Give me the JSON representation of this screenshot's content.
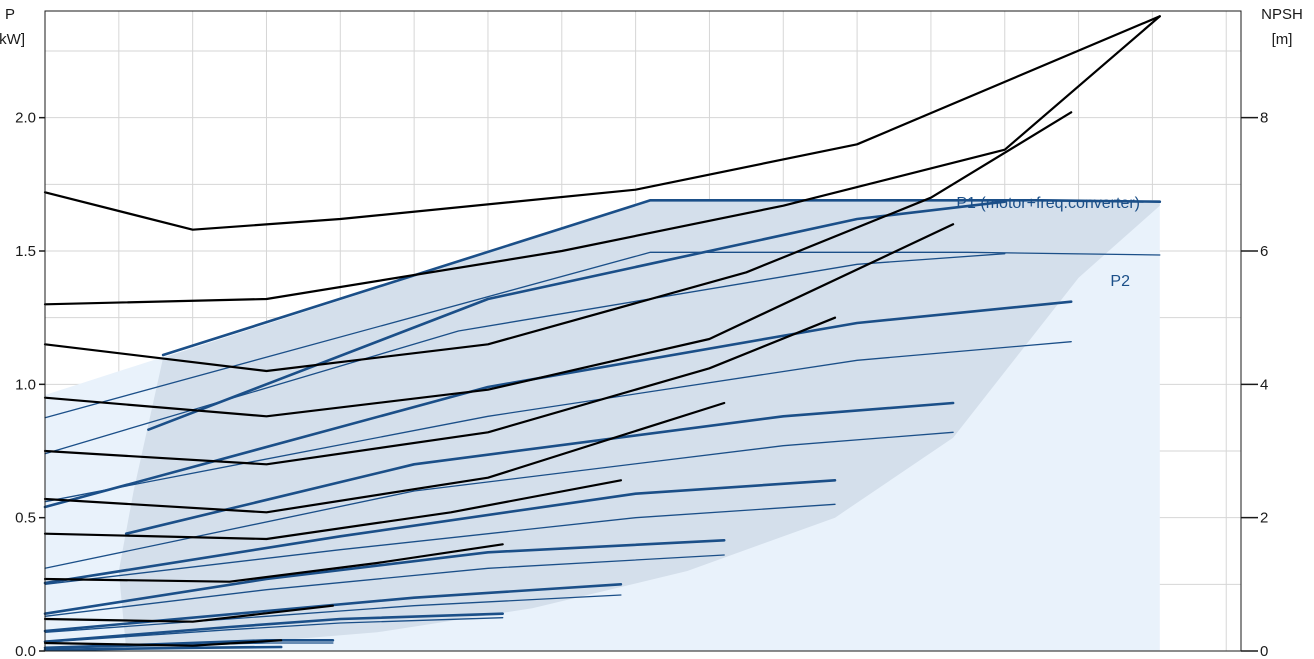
{
  "chart_data": {
    "type": "line",
    "left_axis": {
      "label_line1": "P",
      "label_line2": "[kW]",
      "ylim": [
        0,
        2.4
      ],
      "ticks": [
        "0.0",
        "0.5",
        "1.0",
        "1.5",
        "2.0"
      ]
    },
    "right_axis": {
      "label_line1": "NPSH",
      "label_line2": "[m]",
      "ylim": [
        0,
        9.6
      ],
      "ticks": [
        "0",
        "2",
        "4",
        "6",
        "8"
      ]
    },
    "xlim": [
      0,
      16.2
    ],
    "grid": true,
    "colors": {
      "power_line": "#1b4f88",
      "region_fill": "#d4dfeb",
      "region_fill_light": "#e9f2fb",
      "npsh_line": "#000000",
      "label": "#1b4f88"
    },
    "annotations": {
      "p1": "P1 (motor+freq.converter)",
      "p2": "P2"
    },
    "envelope": [
      [
        0,
        0
      ],
      [
        15.1,
        0
      ],
      [
        15.1,
        1.69
      ],
      [
        8.2,
        1.69
      ],
      [
        0,
        0.96
      ]
    ],
    "region": [
      [
        1.6,
        1.1
      ],
      [
        8.2,
        1.69
      ],
      [
        15.1,
        1.69
      ],
      [
        15.1,
        1.67
      ],
      [
        14.0,
        1.4
      ],
      [
        12.3,
        0.8
      ],
      [
        10.7,
        0.5
      ],
      [
        8.7,
        0.3
      ],
      [
        6.6,
        0.16
      ],
      [
        4.5,
        0.07
      ],
      [
        2.5,
        0.025
      ],
      [
        1.1,
        0.005
      ],
      [
        1.0,
        0.3
      ],
      [
        1.2,
        0.6
      ],
      [
        1.4,
        0.85
      ]
    ],
    "series": [
      {
        "kind": "P1",
        "points": [
          [
            1.6,
            1.11
          ],
          [
            8.2,
            1.69
          ],
          [
            9.0,
            1.69
          ],
          [
            11.0,
            1.69
          ],
          [
            13.5,
            1.69
          ],
          [
            15.1,
            1.685
          ]
        ]
      },
      {
        "kind": "P2",
        "points": [
          [
            0,
            0.875
          ],
          [
            8.2,
            1.495
          ],
          [
            10.0,
            1.495
          ],
          [
            12.5,
            1.495
          ],
          [
            15.1,
            1.485
          ]
        ]
      },
      {
        "kind": "P1",
        "points": [
          [
            1.4,
            0.83
          ],
          [
            6.0,
            1.32
          ],
          [
            11.0,
            1.62
          ],
          [
            13.0,
            1.685
          ]
        ]
      },
      {
        "kind": "P2",
        "points": [
          [
            0,
            0.74
          ],
          [
            5.6,
            1.2
          ],
          [
            11.0,
            1.45
          ],
          [
            13.0,
            1.49
          ]
        ]
      },
      {
        "kind": "P1",
        "points": [
          [
            0,
            0.54
          ],
          [
            6.0,
            0.99
          ],
          [
            11.0,
            1.23
          ],
          [
            13.9,
            1.31
          ]
        ]
      },
      {
        "kind": "P2",
        "points": [
          [
            0,
            0.56
          ],
          [
            6.0,
            0.88
          ],
          [
            11.0,
            1.09
          ],
          [
            13.9,
            1.16
          ]
        ]
      },
      {
        "kind": "P1",
        "points": [
          [
            1.1,
            0.44
          ],
          [
            5.0,
            0.7
          ],
          [
            10.0,
            0.88
          ],
          [
            12.3,
            0.93
          ]
        ]
      },
      {
        "kind": "P2",
        "points": [
          [
            0,
            0.31
          ],
          [
            5.0,
            0.6
          ],
          [
            10.0,
            0.77
          ],
          [
            12.3,
            0.82
          ]
        ]
      },
      {
        "kind": "P1",
        "points": [
          [
            0,
            0.255
          ],
          [
            4.0,
            0.43
          ],
          [
            8.0,
            0.59
          ],
          [
            10.7,
            0.64
          ]
        ]
      },
      {
        "kind": "P2",
        "points": [
          [
            0,
            0.25
          ],
          [
            4.0,
            0.38
          ],
          [
            8.0,
            0.5
          ],
          [
            10.7,
            0.55
          ]
        ]
      },
      {
        "kind": "P1",
        "points": [
          [
            0,
            0.14
          ],
          [
            3.0,
            0.27
          ],
          [
            6.0,
            0.37
          ],
          [
            9.2,
            0.415
          ]
        ]
      },
      {
        "kind": "P2",
        "points": [
          [
            0,
            0.13
          ],
          [
            3.0,
            0.23
          ],
          [
            6.0,
            0.31
          ],
          [
            9.2,
            0.36
          ]
        ]
      },
      {
        "kind": "P1",
        "points": [
          [
            0,
            0.075
          ],
          [
            3.0,
            0.15
          ],
          [
            5.0,
            0.2
          ],
          [
            7.8,
            0.25
          ]
        ]
      },
      {
        "kind": "P2",
        "points": [
          [
            0,
            0.07
          ],
          [
            3.0,
            0.13
          ],
          [
            5.0,
            0.17
          ],
          [
            7.8,
            0.21
          ]
        ]
      },
      {
        "kind": "P1",
        "points": [
          [
            0,
            0.035
          ],
          [
            2.5,
            0.09
          ],
          [
            4.0,
            0.12
          ],
          [
            6.2,
            0.14
          ]
        ]
      },
      {
        "kind": "P2",
        "points": [
          [
            0,
            0.033
          ],
          [
            2.5,
            0.08
          ],
          [
            4.0,
            0.105
          ],
          [
            6.2,
            0.125
          ]
        ]
      },
      {
        "kind": "P1",
        "points": [
          [
            0,
            0.012
          ],
          [
            1.5,
            0.025
          ],
          [
            3.0,
            0.04
          ],
          [
            3.9,
            0.04
          ]
        ]
      },
      {
        "kind": "P2",
        "points": [
          [
            0,
            0.01
          ],
          [
            1.5,
            0.02
          ],
          [
            3.0,
            0.03
          ],
          [
            3.9,
            0.03
          ]
        ]
      },
      {
        "kind": "P1",
        "points": [
          [
            0,
            0.004
          ],
          [
            2.0,
            0.012
          ],
          [
            3.2,
            0.015
          ]
        ]
      },
      {
        "kind": "NPSH",
        "points": [
          [
            0,
            1.72
          ],
          [
            2.0,
            1.58
          ],
          [
            4.0,
            1.62
          ],
          [
            8.0,
            1.73
          ],
          [
            11.0,
            1.9
          ],
          [
            15.1,
            2.38
          ]
        ]
      },
      {
        "kind": "NPSH",
        "points": [
          [
            0,
            1.3
          ],
          [
            3.0,
            1.32
          ],
          [
            7.0,
            1.5
          ],
          [
            10.0,
            1.67
          ],
          [
            13.0,
            1.88
          ],
          [
            15.1,
            2.38
          ]
        ]
      },
      {
        "kind": "NPSH",
        "points": [
          [
            0,
            1.15
          ],
          [
            3.0,
            1.05
          ],
          [
            6.0,
            1.15
          ],
          [
            9.5,
            1.42
          ],
          [
            12.0,
            1.7
          ],
          [
            13.9,
            2.02
          ]
        ]
      },
      {
        "kind": "NPSH",
        "points": [
          [
            0,
            0.95
          ],
          [
            3.0,
            0.88
          ],
          [
            6.0,
            0.98
          ],
          [
            9.0,
            1.17
          ],
          [
            12.3,
            1.6
          ]
        ]
      },
      {
        "kind": "NPSH",
        "points": [
          [
            0,
            0.75
          ],
          [
            3.0,
            0.7
          ],
          [
            6.0,
            0.82
          ],
          [
            9.0,
            1.06
          ],
          [
            10.7,
            1.25
          ]
        ]
      },
      {
        "kind": "NPSH",
        "points": [
          [
            0,
            0.57
          ],
          [
            3.0,
            0.52
          ],
          [
            6.0,
            0.65
          ],
          [
            9.2,
            0.93
          ]
        ]
      },
      {
        "kind": "NPSH",
        "points": [
          [
            0,
            0.44
          ],
          [
            3.0,
            0.42
          ],
          [
            5.5,
            0.52
          ],
          [
            7.8,
            0.64
          ]
        ]
      },
      {
        "kind": "NPSH",
        "points": [
          [
            0,
            0.27
          ],
          [
            2.5,
            0.26
          ],
          [
            4.5,
            0.33
          ],
          [
            6.2,
            0.4
          ]
        ]
      },
      {
        "kind": "NPSH",
        "points": [
          [
            0,
            0.12
          ],
          [
            2.0,
            0.11
          ],
          [
            3.9,
            0.17
          ]
        ]
      },
      {
        "kind": "NPSH",
        "points": [
          [
            0,
            0.03
          ],
          [
            2.0,
            0.02
          ],
          [
            3.2,
            0.04
          ]
        ]
      }
    ]
  }
}
